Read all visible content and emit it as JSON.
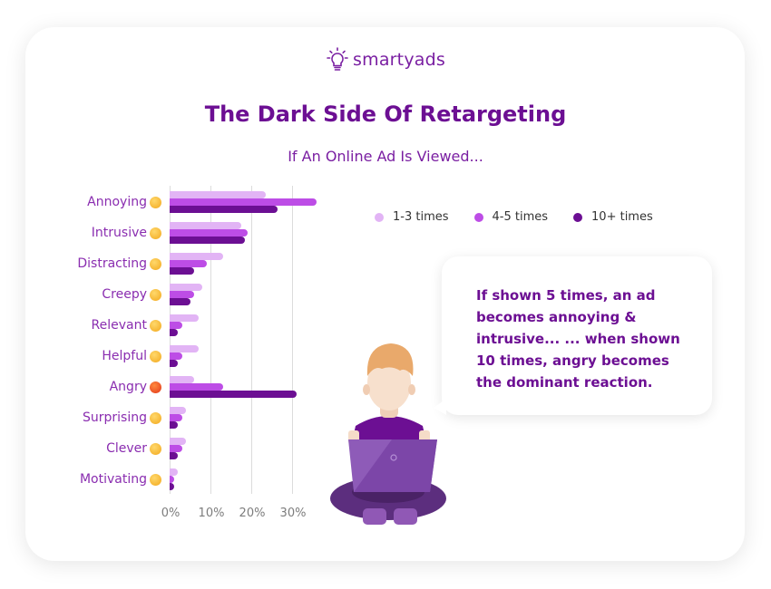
{
  "brand": {
    "name": "smartyads",
    "icon": "lightbulb-icon",
    "color": "#7a1fa2"
  },
  "title": "The Dark Side Of Retargeting",
  "subtitle": "If An Online Ad Is Viewed...",
  "legend": [
    {
      "label": "1-3 times",
      "color": "#e2b4f5"
    },
    {
      "label": "4-5 times",
      "color": "#bd4de6"
    },
    {
      "label": "10+ times",
      "color": "#6c0f93"
    }
  ],
  "callout": "If shown 5 times, an ad becomes annoying & intrusive... ... when shown 10 times, angry becomes the dominant reaction.",
  "axis": {
    "ticks": [
      "0%",
      "10%",
      "20%",
      "30%"
    ]
  },
  "rows": [
    {
      "label": "Annoying",
      "emoji": "confounded-face-icon"
    },
    {
      "label": "Intrusive",
      "emoji": "worried-face-icon"
    },
    {
      "label": "Distracting",
      "emoji": "grimacing-face-icon"
    },
    {
      "label": "Creepy",
      "emoji": "frowning-face-icon"
    },
    {
      "label": "Relevant",
      "emoji": "heart-eyes-face-icon"
    },
    {
      "label": "Helpful",
      "emoji": "slightly-smiling-face-icon"
    },
    {
      "label": "Angry",
      "emoji": "angry-face-icon"
    },
    {
      "label": "Surprising",
      "emoji": "hand-over-mouth-face-icon"
    },
    {
      "label": "Clever",
      "emoji": "nerd-face-icon"
    },
    {
      "label": "Motivating",
      "emoji": "saluting-face-icon"
    }
  ],
  "chart_data": {
    "type": "bar",
    "orientation": "horizontal",
    "title": "The Dark Side Of Retargeting",
    "subtitle": "If An Online Ad Is Viewed...",
    "xlabel": "",
    "ylabel": "",
    "xlim": [
      0,
      35
    ],
    "x_ticks": [
      "0%",
      "10%",
      "20%",
      "30%"
    ],
    "grid": true,
    "legend_position": "top-right",
    "categories": [
      "Annoying",
      "Intrusive",
      "Distracting",
      "Creepy",
      "Relevant",
      "Helpful",
      "Angry",
      "Surprising",
      "Clever",
      "Motivating"
    ],
    "series": [
      {
        "name": "1-3 times",
        "color": "#e2b4f5",
        "values": [
          23.5,
          17.5,
          13,
          8,
          7,
          7,
          6,
          4,
          4,
          2
        ]
      },
      {
        "name": "4-5 times",
        "color": "#bd4de6",
        "values": [
          36,
          19,
          9,
          6,
          3,
          3,
          13,
          3,
          3,
          1
        ]
      },
      {
        "name": "10+ times",
        "color": "#6c0f93",
        "values": [
          26.5,
          18.5,
          6,
          5,
          2,
          2,
          31,
          2,
          2,
          1
        ]
      }
    ],
    "annotations": [
      "If shown 5 times, an ad becomes annoying & intrusive... ... when shown 10 times, angry becomes the dominant reaction."
    ]
  }
}
